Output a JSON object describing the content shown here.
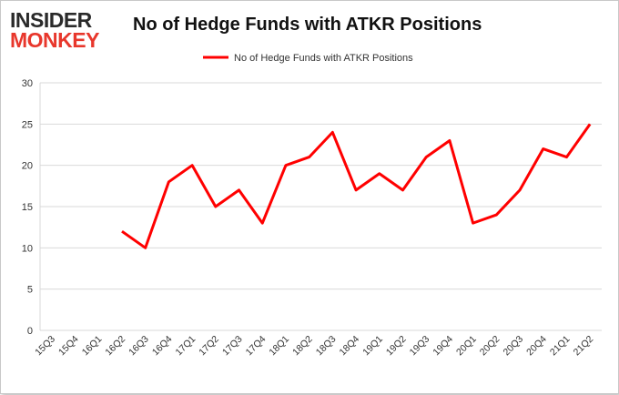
{
  "logo": {
    "line1": "INSIDER",
    "line2": "MONKEY"
  },
  "chart_data": {
    "type": "line",
    "title": "No of Hedge Funds with ATKR Positions",
    "categories": [
      "15Q3",
      "15Q4",
      "16Q1",
      "16Q2",
      "16Q3",
      "16Q4",
      "17Q1",
      "17Q2",
      "17Q3",
      "17Q4",
      "18Q1",
      "18Q2",
      "18Q3",
      "18Q4",
      "19Q1",
      "19Q2",
      "19Q3",
      "19Q4",
      "20Q1",
      "20Q2",
      "20Q3",
      "20Q4",
      "21Q1",
      "21Q2"
    ],
    "series": [
      {
        "name": "No of Hedge Funds with ATKR Positions",
        "color": "#ff0000",
        "values": [
          null,
          null,
          null,
          12,
          10,
          18,
          20,
          15,
          17,
          13,
          20,
          21,
          24,
          17,
          19,
          17,
          21,
          23,
          13,
          14,
          17,
          22,
          21,
          25
        ]
      }
    ],
    "ylim": [
      0,
      30
    ],
    "yticks": [
      0,
      5,
      10,
      15,
      20,
      25,
      30
    ],
    "grid": true,
    "legend": "top-center",
    "xlabel": "",
    "ylabel": ""
  }
}
